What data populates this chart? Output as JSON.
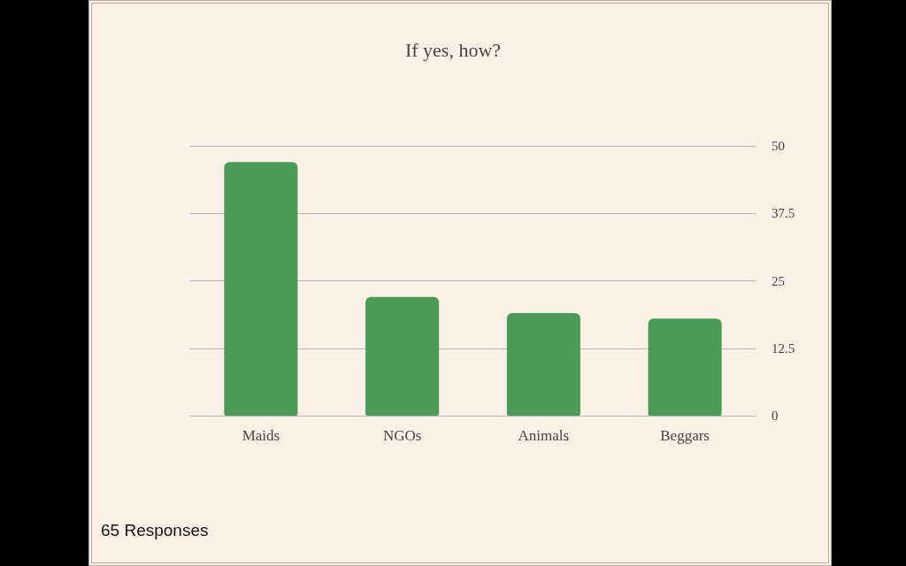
{
  "chart_data": {
    "type": "bar",
    "title": "If yes, how?",
    "categories": [
      "Maids",
      "NGOs",
      "Animals",
      "Beggars"
    ],
    "values": [
      47,
      22,
      19,
      18
    ],
    "color": "#4b9a57",
    "ylim": [
      0,
      50
    ],
    "yticks": [
      0,
      12.5,
      25,
      37.5,
      50
    ],
    "grid": "y",
    "annotations": [
      "65 Responses"
    ]
  }
}
